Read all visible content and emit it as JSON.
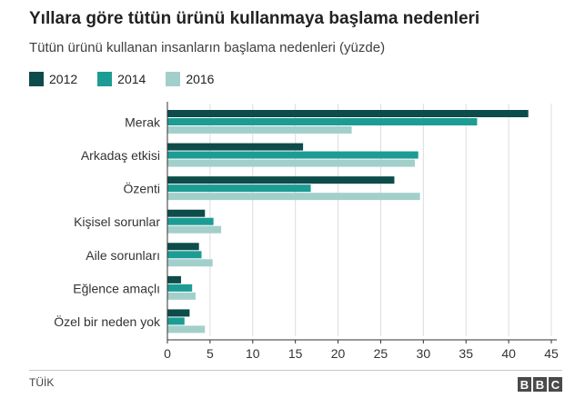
{
  "title": "Yıllara göre tütün ürünü kullanmaya başlama nedenleri",
  "subtitle": "Tütün ürünü kullanan insanların başlama nedenleri (yüzde)",
  "source": "TÜİK",
  "logo": {
    "letters": [
      "B",
      "B",
      "C"
    ]
  },
  "chart_data": {
    "type": "bar",
    "orientation": "horizontal",
    "categories": [
      "Merak",
      "Arkadaş etkisi",
      "Özenti",
      "Kişisel sorunlar",
      "Aile sorunları",
      "Eğlence amaçlı",
      "Özel bir neden yok"
    ],
    "series": [
      {
        "name": "2012",
        "color": "#0d4c4a",
        "values": [
          42.3,
          15.9,
          26.6,
          4.4,
          3.7,
          1.6,
          2.6
        ]
      },
      {
        "name": "2014",
        "color": "#1d9c94",
        "values": [
          36.3,
          29.4,
          16.8,
          5.4,
          4.0,
          2.9,
          2.0
        ]
      },
      {
        "name": "2016",
        "color": "#a3cfcb",
        "values": [
          21.6,
          29.0,
          29.6,
          6.3,
          5.3,
          3.3,
          4.4
        ]
      }
    ],
    "xlim": [
      0,
      45
    ],
    "xticks": [
      0,
      5,
      10,
      15,
      20,
      25,
      30,
      35,
      40,
      45
    ],
    "xlabel": "",
    "ylabel": "",
    "grid": true,
    "legend_position": "top-left"
  }
}
